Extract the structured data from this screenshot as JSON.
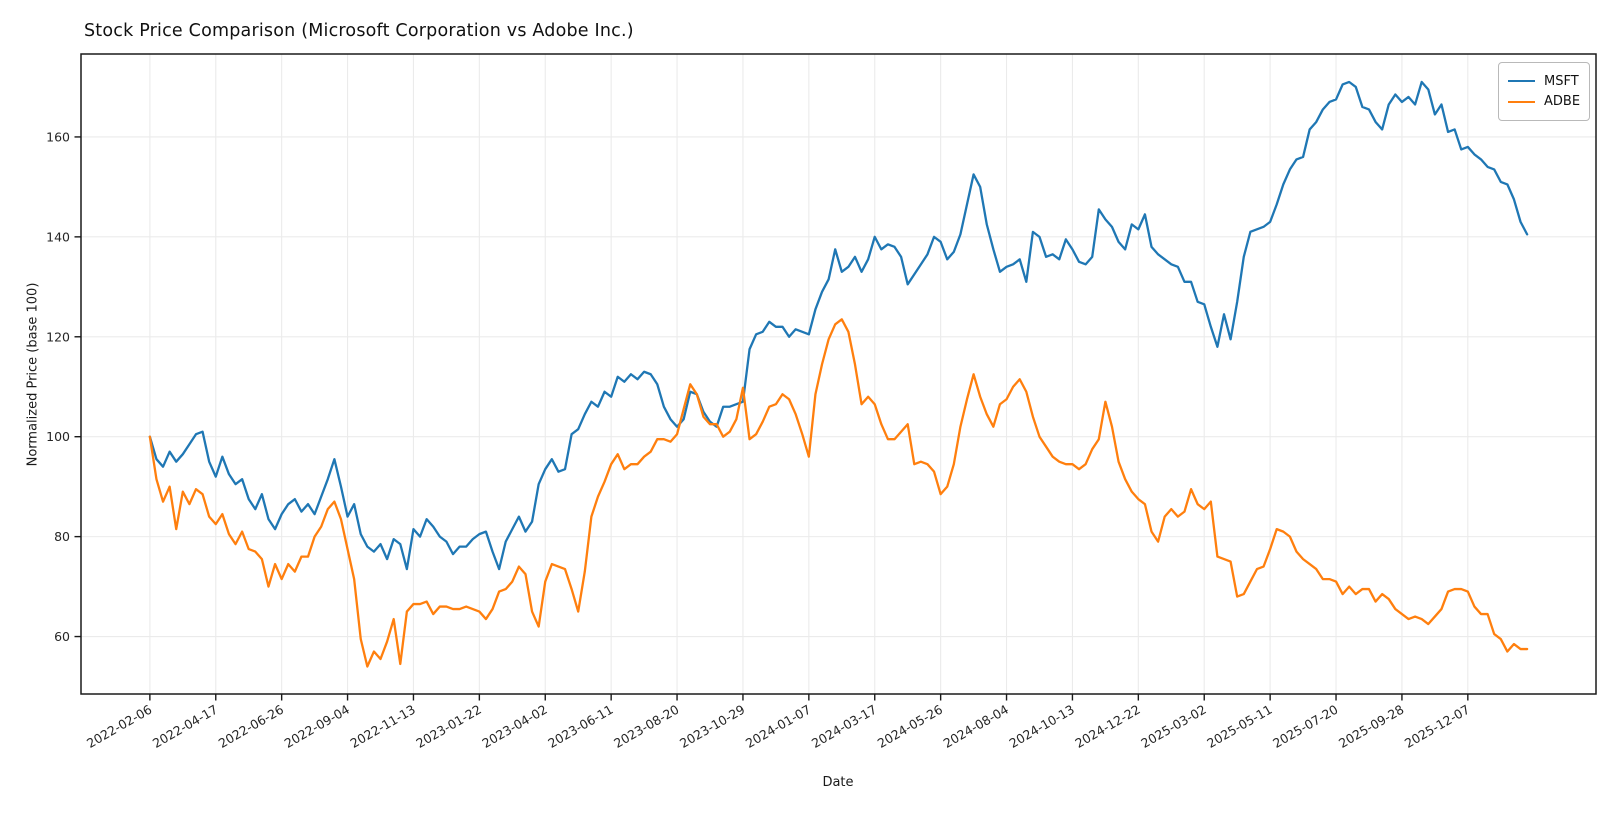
{
  "title": "Stock Price Comparison (Microsoft Corporation vs Adobe Inc.)",
  "legend": {
    "position": "upper right",
    "items": [
      {
        "label": "MSFT",
        "color": "#1f77b4"
      },
      {
        "label": "ADBE",
        "color": "#ff7f0e"
      }
    ]
  },
  "chart_data": {
    "type": "line",
    "title": "Stock Price Comparison (Microsoft Corporation vs Adobe Inc.)",
    "xlabel": "Date",
    "ylabel": "Normalized Price (base 100)",
    "x_unit": "weekly samples starting 2022-02-06",
    "start_date": "2022-02-06",
    "interval_days": 7,
    "x_tick_weeks": [
      0,
      10,
      20,
      30,
      40,
      50,
      60,
      70,
      80,
      90,
      100,
      110,
      120,
      130,
      140,
      150,
      160,
      170,
      180,
      190,
      200
    ],
    "x_tick_labels": [
      "2022-02-06",
      "2022-04-17",
      "2022-06-26",
      "2022-09-04",
      "2022-11-13",
      "2023-01-22",
      "2023-04-02",
      "2023-06-11",
      "2023-08-20",
      "2023-10-29",
      "2024-01-07",
      "2024-03-17",
      "2024-05-26",
      "2024-08-04",
      "2024-10-13",
      "2024-12-22",
      "2025-03-02",
      "2025-05-11",
      "2025-07-20",
      "2025-09-28",
      "2025-12-07"
    ],
    "y_ticks": [
      60,
      80,
      100,
      120,
      140,
      160
    ],
    "xlim": [
      -10.45,
      219.45
    ],
    "ylim": [
      48.5,
      176.6
    ],
    "grid": true,
    "grid_color": "#ebebeb",
    "axis_color": "#1a1a1a",
    "tick_label_rotation_deg": 30,
    "legend_position": "upper right",
    "series": [
      {
        "name": "MSFT",
        "color": "#1f77b4",
        "line_width": 2.3,
        "values": [
          100,
          95.5,
          94,
          97,
          95,
          96.5,
          98.5,
          100.5,
          101,
          95,
          92,
          96,
          92.5,
          90.5,
          91.5,
          87.5,
          85.5,
          88.5,
          83.5,
          81.5,
          84.5,
          86.5,
          87.5,
          85,
          86.5,
          84.5,
          88,
          91.5,
          95.5,
          90,
          84,
          86.5,
          80.5,
          78,
          77,
          78.5,
          75.5,
          79.5,
          78.5,
          73.5,
          81.5,
          80,
          83.5,
          82,
          80,
          79,
          76.5,
          78,
          78,
          79.5,
          80.5,
          81,
          77,
          73.5,
          79,
          81.5,
          84,
          81,
          83,
          90.5,
          93.5,
          95.5,
          93,
          93.5,
          100.5,
          101.5,
          104.5,
          107,
          106,
          109,
          108,
          112,
          111,
          112.5,
          111.5,
          113,
          112.5,
          110.5,
          106,
          103.5,
          102,
          103.5,
          109,
          108.5,
          105,
          103,
          102,
          106,
          106,
          106.5,
          107,
          117.5,
          120.5,
          121,
          123,
          122,
          122,
          120,
          121.5,
          121,
          120.5,
          125.5,
          129,
          131.5,
          137.5,
          133,
          134,
          136,
          133,
          135.5,
          140,
          137.5,
          138.5,
          138,
          136,
          130.5,
          132.5,
          134.5,
          136.5,
          140,
          139,
          135.5,
          137,
          140.5,
          146.5,
          152.5,
          150,
          142.5,
          137.5,
          133,
          134,
          134.5,
          135.5,
          131,
          141,
          140,
          136,
          136.5,
          135.5,
          139.5,
          137.5,
          135,
          134.5,
          136,
          145.5,
          143.5,
          142,
          139,
          137.5,
          142.5,
          141.5,
          144.5,
          138,
          136.5,
          135.5,
          134.5,
          134,
          131,
          131,
          127,
          126.5,
          122,
          118,
          124.5,
          119.5,
          127,
          136,
          141,
          141.5,
          142,
          143,
          146.5,
          150.5,
          153.5,
          155.5,
          156,
          161.5,
          163,
          165.5,
          167,
          167.5,
          170.5,
          171,
          170,
          166,
          165.5,
          163,
          161.5,
          166.5,
          168.5,
          167,
          168,
          166.5,
          171,
          169.5,
          164.5,
          166.5,
          161,
          161.5,
          157.5,
          158,
          156.5,
          155.5,
          154,
          153.5,
          151,
          150.5,
          147.5,
          143,
          140.5
        ]
      },
      {
        "name": "ADBE",
        "color": "#ff7f0e",
        "line_width": 2.3,
        "values": [
          100,
          91.5,
          87,
          90,
          81.5,
          89,
          86.5,
          89.5,
          88.5,
          84,
          82.5,
          84.5,
          80.5,
          78.5,
          81,
          77.5,
          77,
          75.5,
          70,
          74.5,
          71.5,
          74.5,
          73,
          76,
          76,
          80,
          82,
          85.5,
          87,
          83.5,
          77.5,
          71.5,
          59.5,
          54,
          57,
          55.5,
          59,
          63.5,
          54.5,
          65,
          66.5,
          66.5,
          67,
          64.5,
          66,
          66,
          65.5,
          65.5,
          66,
          65.5,
          65,
          63.5,
          65.5,
          69,
          69.5,
          71,
          74,
          72.5,
          65,
          62,
          71,
          74.5,
          74,
          73.5,
          69.5,
          65,
          73,
          84,
          88,
          91,
          94.5,
          96.5,
          93.5,
          94.5,
          94.5,
          96,
          97,
          99.5,
          99.5,
          99,
          100.5,
          105.5,
          110.5,
          108.5,
          104,
          102.5,
          102.5,
          100,
          101,
          103.5,
          109.8,
          99.5,
          100.5,
          103,
          106,
          106.5,
          108.5,
          107.5,
          104.5,
          100.5,
          96,
          108.5,
          114.5,
          119.5,
          122.5,
          123.5,
          121,
          114.5,
          106.5,
          108,
          106.5,
          102.5,
          99.5,
          99.5,
          101,
          102.5,
          94.5,
          95,
          94.5,
          93,
          88.5,
          90,
          94.5,
          102,
          107.5,
          112.5,
          108,
          104.5,
          102,
          106.5,
          107.5,
          110,
          111.5,
          109,
          104,
          100,
          98,
          96,
          95,
          94.5,
          94.5,
          93.5,
          94.5,
          97.5,
          99.5,
          107,
          102,
          95,
          91.5,
          89,
          87.5,
          86.5,
          81,
          79,
          84,
          85.5,
          84,
          85,
          89.5,
          86.5,
          85.5,
          87,
          76,
          75.5,
          75,
          68,
          68.5,
          71,
          73.5,
          74,
          77.5,
          81.5,
          81,
          80,
          77,
          75.5,
          74.5,
          73.5,
          71.5,
          71.5,
          71,
          68.5,
          70,
          68.5,
          69.5,
          69.5,
          67,
          68.5,
          67.5,
          65.5,
          64.5,
          63.5,
          64,
          63.5,
          62.5,
          64,
          65.5,
          69,
          69.5,
          69.5,
          69,
          66,
          64.5,
          64.5,
          60.5,
          59.5,
          57,
          58.5,
          57.5,
          57.5
        ]
      }
    ]
  }
}
